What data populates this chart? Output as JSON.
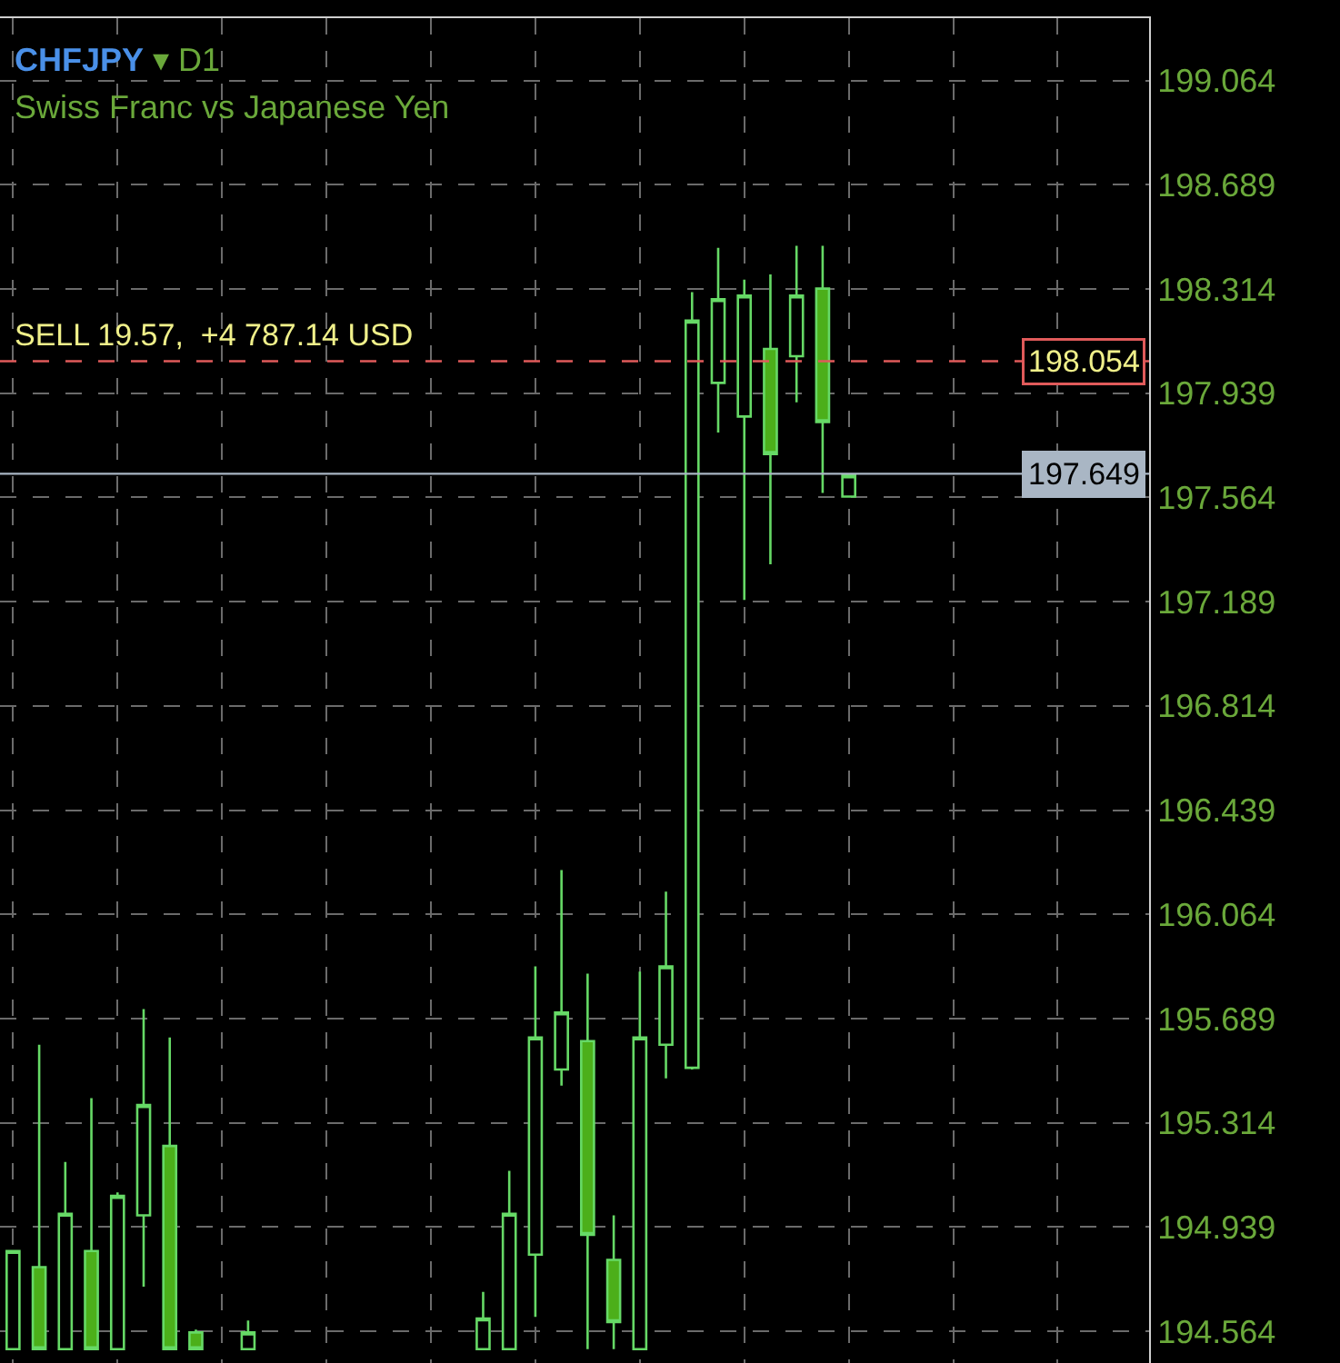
{
  "chart_data": {
    "type": "candlestick",
    "title": "CHFJPY ▾ D1",
    "subtitle": "Swiss Franc vs Japanese Yen",
    "categories": [
      null,
      null,
      null,
      null,
      null,
      null,
      null,
      null,
      null,
      null,
      null,
      null,
      null,
      null,
      null,
      null,
      null,
      null,
      null,
      null,
      null,
      null,
      null,
      null,
      null,
      null,
      null,
      null,
      null,
      null,
      null,
      null,
      null,
      null,
      null,
      null,
      null,
      null,
      null,
      null,
      null,
      null,
      null,
      null
    ],
    "ohlc": [
      [
        194.5,
        194.853,
        194.5,
        194.853
      ],
      [
        194.795,
        195.595,
        194.5,
        194.5
      ],
      [
        194.5,
        195.173,
        194.5,
        194.987
      ],
      [
        194.853,
        195.403,
        194.5,
        194.5
      ],
      [
        194.5,
        195.064,
        194.5,
        195.051
      ],
      [
        194.981,
        195.723,
        194.725,
        195.378
      ],
      [
        195.231,
        195.621,
        194.5,
        194.5
      ],
      [
        194.56,
        194.57,
        194.5,
        194.5
      ],
      null,
      [
        194.5,
        194.603,
        194.5,
        194.56
      ],
      null,
      null,
      null,
      null,
      null,
      null,
      null,
      null,
      [
        194.5,
        194.706,
        194.5,
        194.61
      ],
      [
        194.5,
        195.141,
        194.5,
        194.987
      ],
      [
        194.84,
        195.877,
        194.616,
        195.621
      ],
      [
        195.506,
        196.223,
        195.448,
        195.711
      ],
      [
        195.608,
        195.851,
        194.5,
        194.911
      ],
      [
        194.821,
        194.981,
        194.5,
        194.597
      ],
      [
        194.5,
        195.858,
        194.5,
        195.621
      ],
      [
        195.595,
        196.146,
        195.474,
        195.877
      ],
      [
        195.512,
        198.302,
        195.506,
        198.2
      ],
      [
        197.976,
        198.462,
        197.797,
        198.277
      ],
      [
        197.855,
        198.347,
        197.195,
        198.29
      ],
      [
        198.098,
        198.366,
        197.323,
        197.72
      ],
      [
        198.072,
        198.469,
        197.906,
        198.29
      ],
      [
        198.315,
        198.469,
        197.58,
        197.835
      ],
      [
        197.567,
        197.649,
        197.567,
        197.643
      ],
      null,
      null,
      null,
      null,
      null,
      null,
      null,
      null,
      null,
      null,
      null
    ],
    "color": "#66d966",
    "ylim": [
      194.45,
      199.288
    ],
    "yticks": [
      199.064,
      198.689,
      198.314,
      197.939,
      197.564,
      197.189,
      196.814,
      196.439,
      196.064,
      195.689,
      195.314,
      194.939,
      194.564
    ],
    "grid": true,
    "tick_labels": "y",
    "legend": false,
    "ref_lines": [
      {
        "axis": "y",
        "value": 198.054,
        "label": "198.054",
        "color": "#e05a5a",
        "line_style": "dashed"
      },
      {
        "axis": "y",
        "value": 197.649,
        "label": "197.649",
        "color": "#a9b6c4",
        "line_style": "solid"
      }
    ],
    "annotations": [
      {
        "text": "SELL 19.57,  +4 787.14 USD",
        "y": 198.054
      }
    ]
  }
}
